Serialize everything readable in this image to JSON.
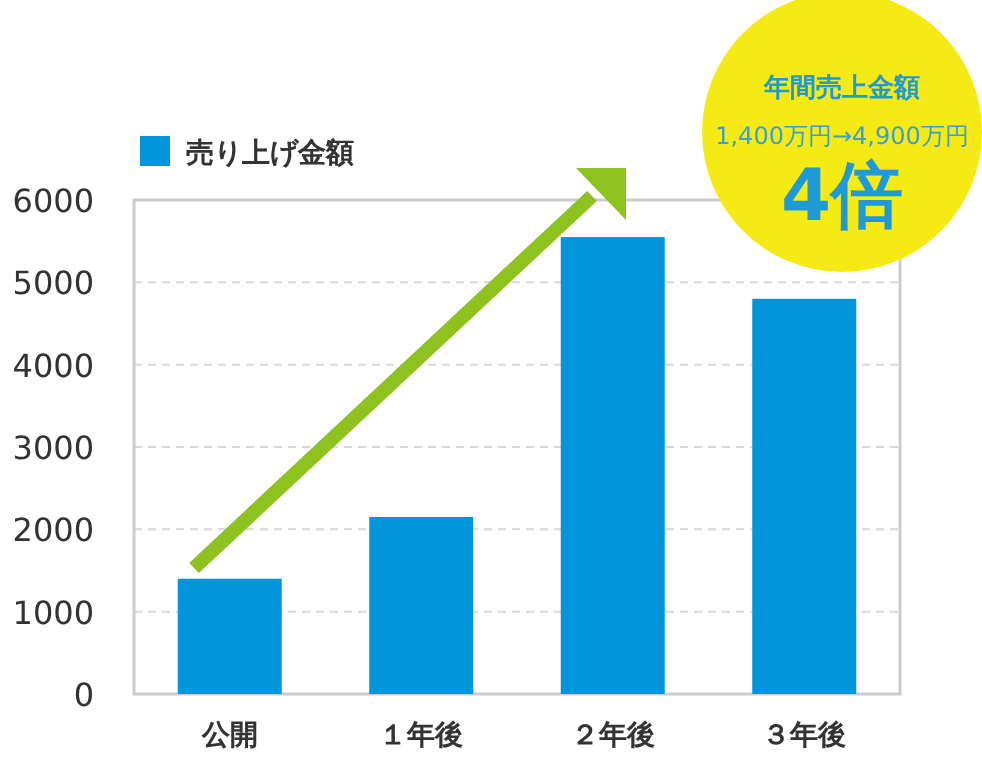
{
  "chart_data": {
    "type": "bar",
    "categories": [
      "公開",
      "１年後",
      "２年後",
      "３年後"
    ],
    "series": [
      {
        "name": "売り上げ金額",
        "color": "#0096d9",
        "values": [
          1400,
          2150,
          5550,
          4800
        ]
      }
    ],
    "ylim": [
      0,
      6000
    ],
    "yticks": [
      0,
      1000,
      2000,
      3000,
      4000,
      5000,
      6000
    ],
    "grid": "y",
    "legend": "top left",
    "annotations": [
      "年間売上金額",
      "1,400万円→4,900万円",
      "4倍"
    ]
  }
}
